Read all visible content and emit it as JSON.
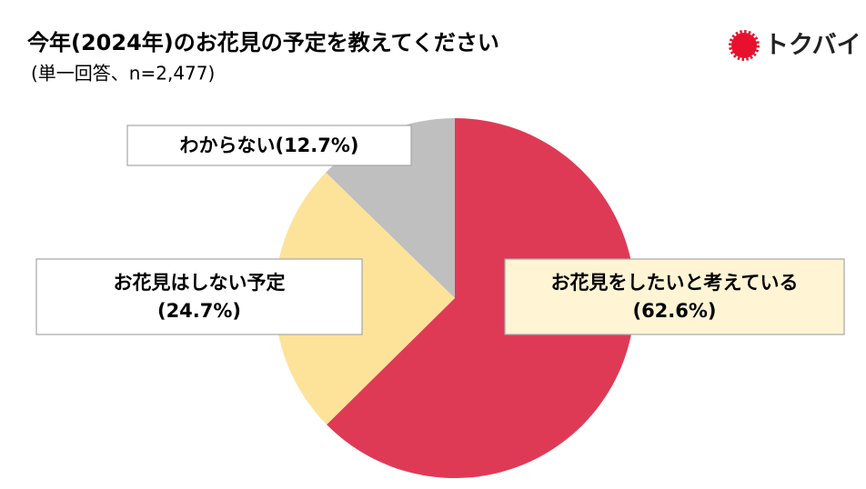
{
  "chart_data": {
    "type": "pie",
    "title": "今年(2024年)のお花見の予定を教えてください",
    "subtitle": "(単一回答、n=2,477)",
    "logo": "トクバイ",
    "categories": [
      "お花見をしたいと考えている",
      "お花見はしない予定",
      "わからない"
    ],
    "values": [
      62.6,
      24.7,
      12.7
    ],
    "value_labels": [
      "(62.6%)",
      "(24.7%)",
      "(12.7%)"
    ],
    "colors": [
      "#df3a55",
      "#fde29a",
      "#bfbfbf"
    ]
  }
}
